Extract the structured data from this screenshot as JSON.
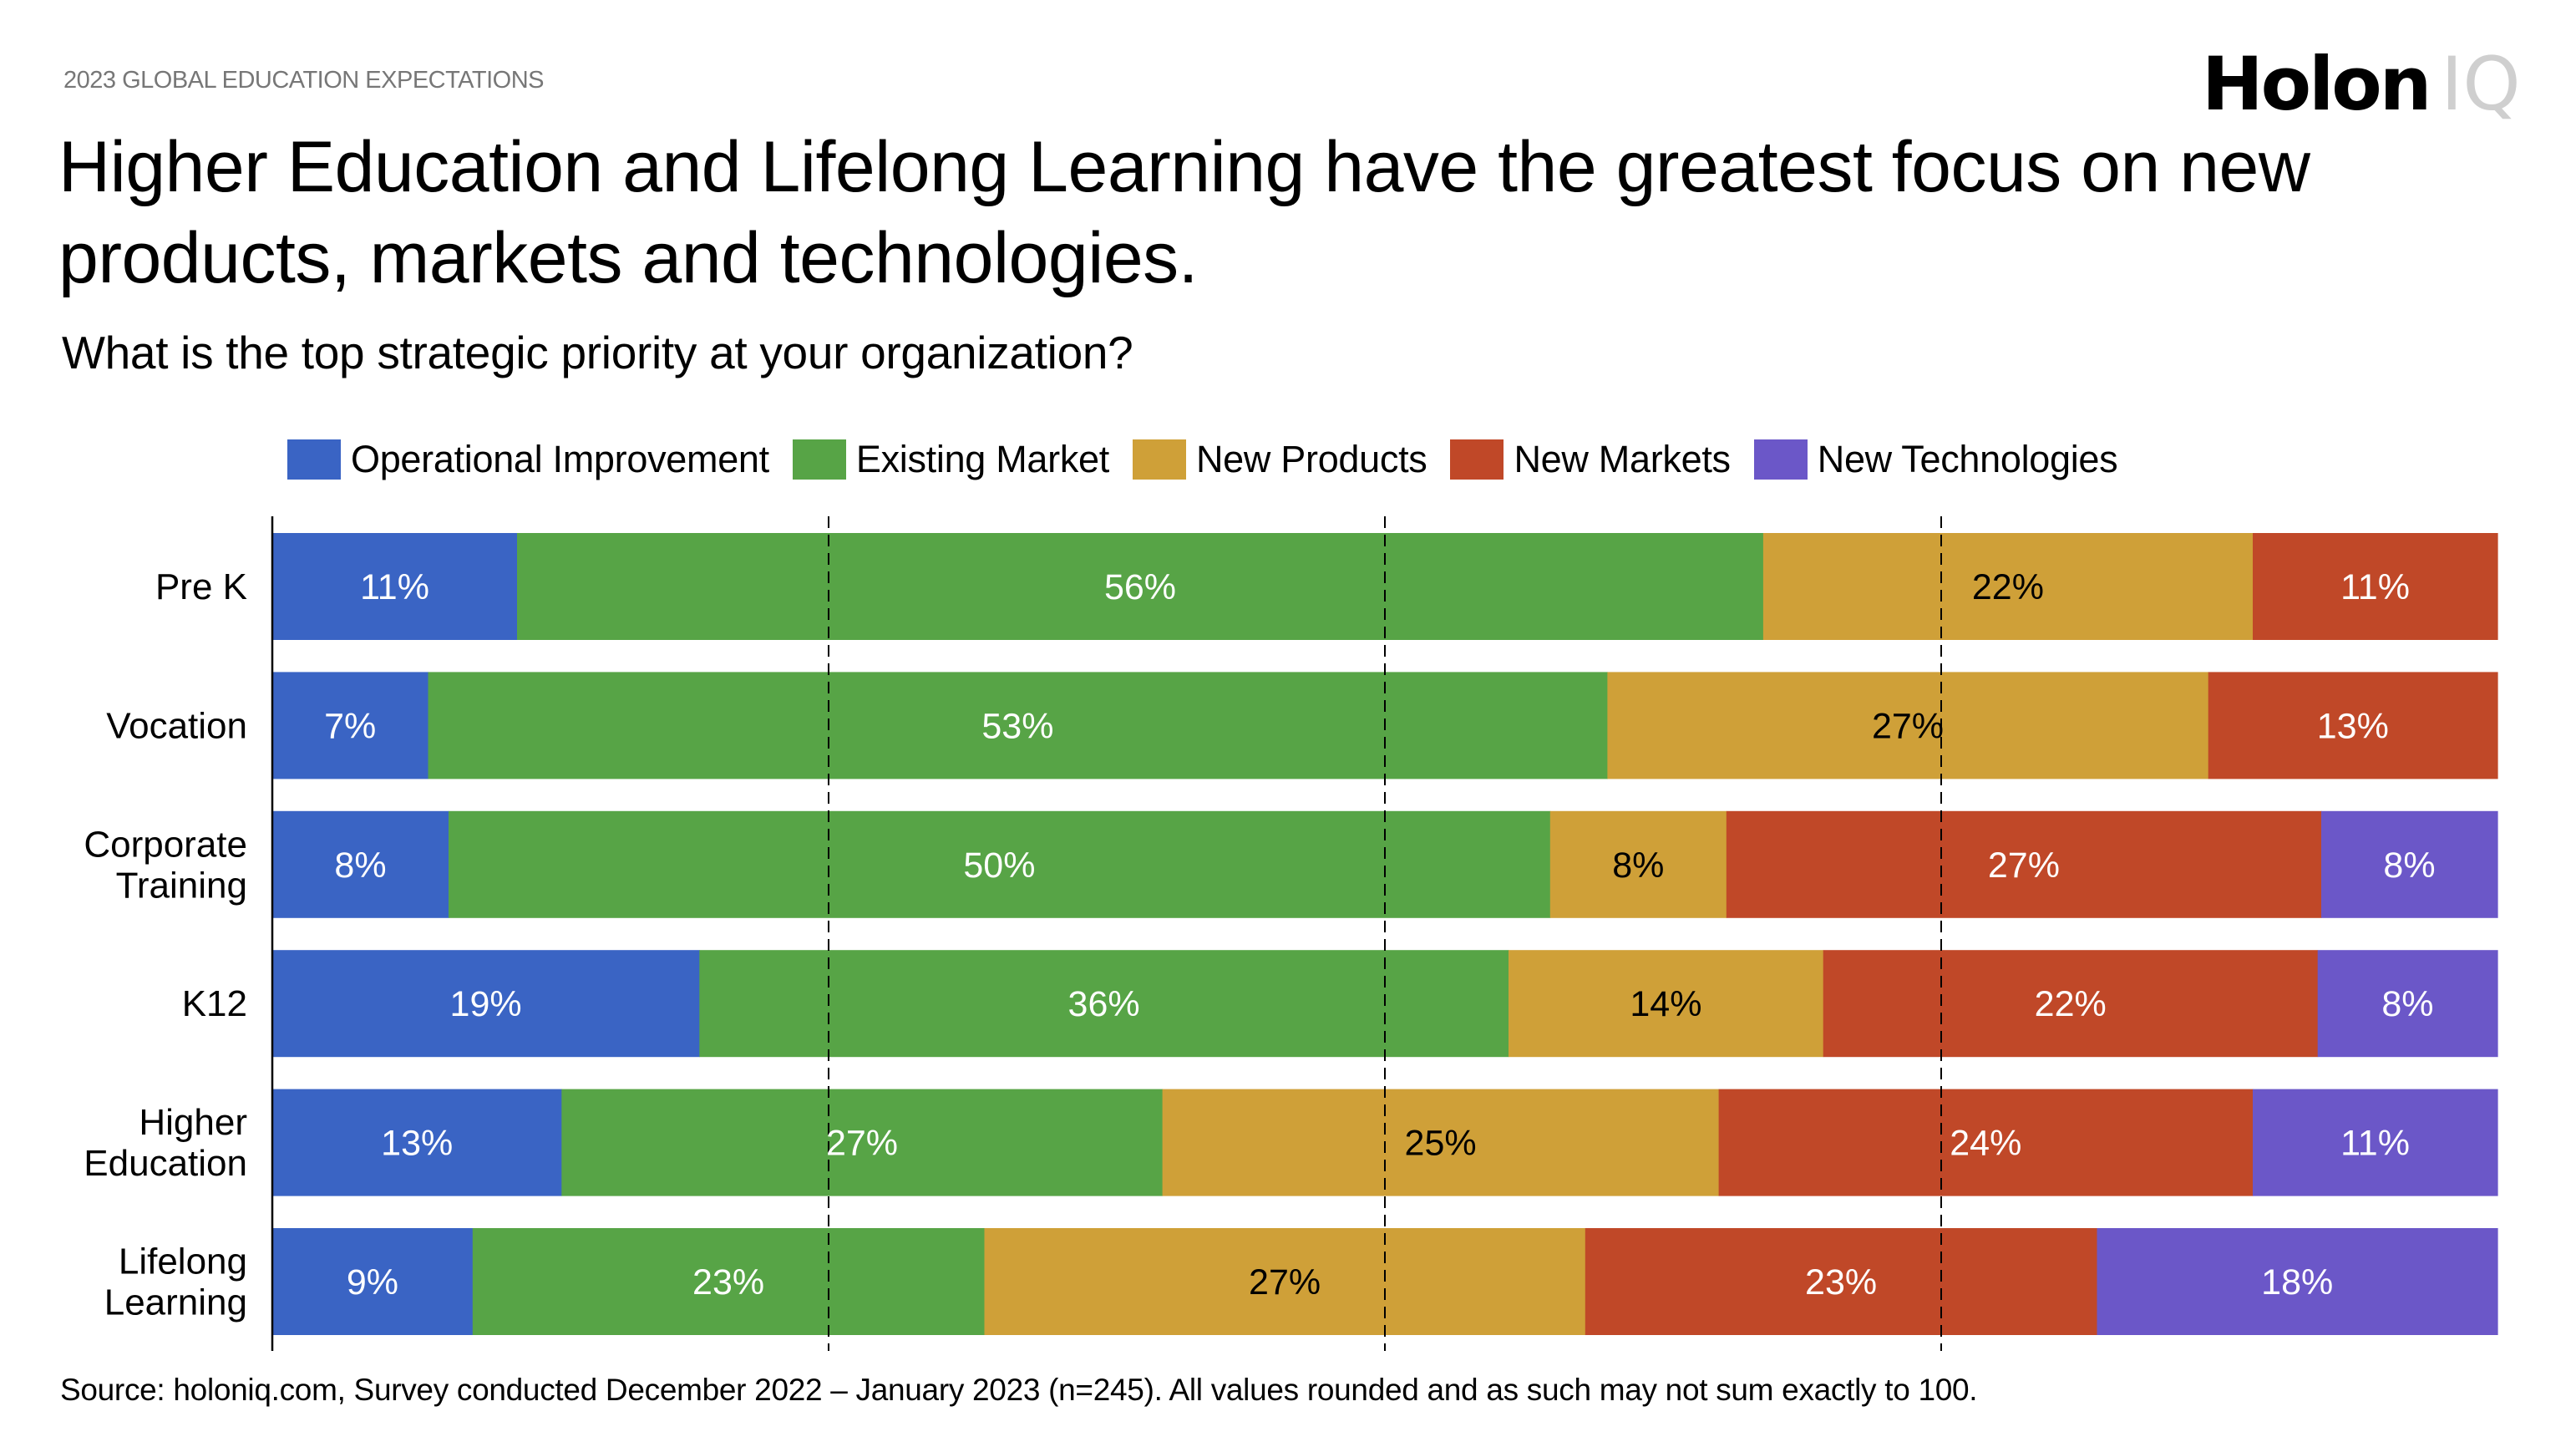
{
  "header": {
    "kicker": "2023 GLOBAL EDUCATION EXPECTATIONS",
    "logo_primary": "Holon",
    "logo_secondary": "IQ",
    "title": "Higher Education and Lifelong Learning have the greatest focus on new products, markets and technologies.",
    "subtitle": "What is the top strategic priority at your organization?"
  },
  "footer": {
    "source": "Source: holoniq.com, Survey conducted December 2022 – January 2023 (n=245). All values rounded and as such may not sum exactly to 100."
  },
  "chart_data": {
    "type": "bar",
    "orientation": "horizontal",
    "stacked": true,
    "normalized_100": true,
    "title": "What is the top strategic priority at your organization?",
    "xlabel": "",
    "ylabel": "",
    "xlim": [
      0,
      100
    ],
    "grid": "vertical dashed lines at 25, 50, 75",
    "gridlines": [
      25,
      50,
      75
    ],
    "legend_position": "top",
    "categories": [
      [
        "Pre K"
      ],
      [
        "Vocation"
      ],
      [
        "Corporate",
        "Training"
      ],
      [
        "K12"
      ],
      [
        "Higher",
        "Education"
      ],
      [
        "Lifelong",
        "Learning"
      ]
    ],
    "series": [
      {
        "name": "Operational Improvement",
        "color": "#3A64C4",
        "label_color": "#ffffff",
        "values": [
          11,
          7,
          8,
          19,
          13,
          9
        ]
      },
      {
        "name": "Existing Market",
        "color": "#57A446",
        "label_color": "#ffffff",
        "values": [
          56,
          53,
          50,
          36,
          27,
          23
        ]
      },
      {
        "name": "New Products",
        "color": "#CFA038",
        "label_color": "#000000",
        "values": [
          22,
          27,
          8,
          14,
          25,
          27
        ]
      },
      {
        "name": "New Markets",
        "color": "#C04828",
        "label_color": "#ffffff",
        "values": [
          11,
          13,
          27,
          22,
          24,
          23
        ]
      },
      {
        "name": "New Technologies",
        "color": "#6B57C8",
        "label_color": "#ffffff",
        "values": [
          0,
          0,
          8,
          8,
          11,
          18
        ]
      }
    ],
    "value_suffix": "%"
  }
}
